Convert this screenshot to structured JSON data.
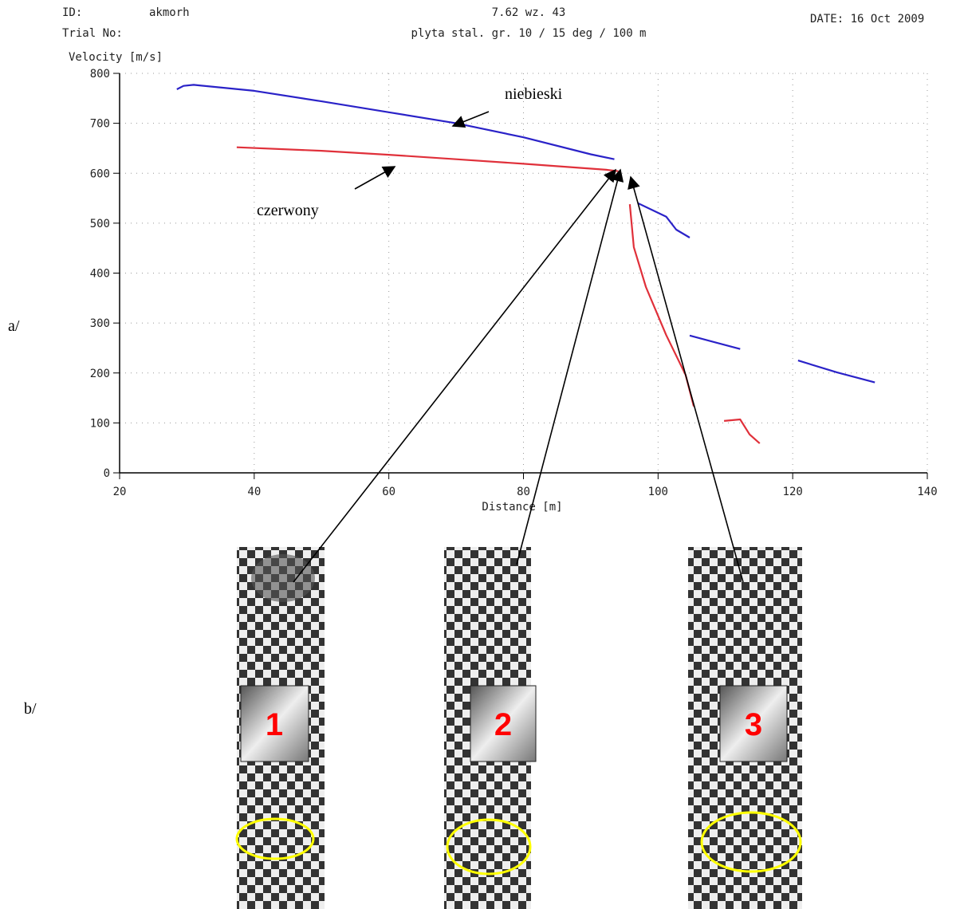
{
  "chart_data": {
    "type": "line",
    "header": {
      "id_label": "ID:",
      "id_value": "akmorh",
      "trial_label": "Trial No:",
      "ammo": "7.62 wz. 43",
      "setup": "plyta stal. gr. 10 / 15 deg / 100 m",
      "date": "DATE: 16 Oct 2009"
    },
    "ylabel": "Velocity [m/s]",
    "xlabel": "Distance [m]",
    "annotations": [
      "niebieski",
      "czerwony"
    ],
    "series": [
      {
        "color": "#2a22c8",
        "x": [
          28.5,
          29.5,
          31,
          40,
          50,
          60,
          70,
          80,
          90,
          93.5,
          null,
          97,
          101.2,
          102.7,
          104.7,
          null,
          104.7,
          112.2,
          null,
          120.8,
          126.6,
          132.2
        ],
        "values": [
          768,
          775,
          777,
          765,
          744,
          722,
          700,
          672,
          638,
          628,
          null,
          540,
          513,
          487,
          471,
          null,
          275,
          248,
          null,
          225,
          201,
          181
        ]
      },
      {
        "color": "#e0303a",
        "x": [
          37.4,
          50,
          60,
          70,
          80,
          92.3,
          94.1,
          null,
          95.8,
          96.4,
          98.2,
          101.2,
          104.1,
          105.3,
          null,
          109.8,
          112.2,
          113.6,
          115.1
        ],
        "values": [
          652,
          645,
          637,
          628,
          619,
          607,
          604,
          null,
          538,
          452,
          372,
          276,
          196,
          133,
          null,
          104,
          107,
          77,
          59
        ]
      }
    ],
    "xlim": [
      20,
      140
    ],
    "ylim": [
      0,
      800
    ],
    "xticks": [
      20,
      40,
      60,
      80,
      100,
      120,
      140
    ],
    "yticks": [
      0,
      100,
      200,
      300,
      400,
      500,
      600,
      700,
      800
    ],
    "grid": true
  },
  "panels": {
    "a": "a/",
    "b": "b/"
  },
  "photos": [
    "1",
    "2",
    "3"
  ]
}
